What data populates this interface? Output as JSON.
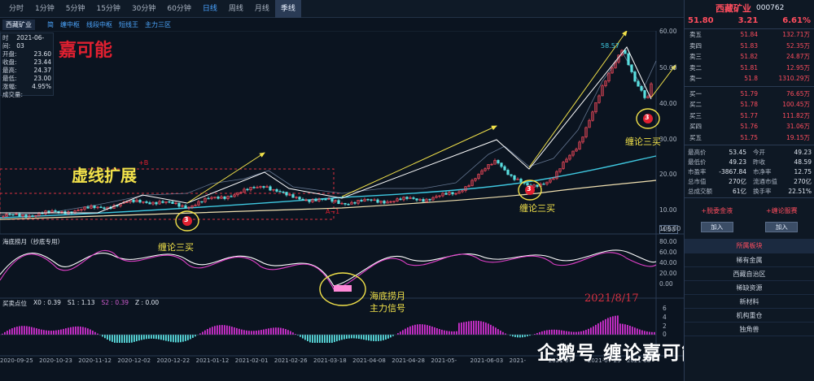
{
  "tabs": [
    {
      "label": "分时",
      "state": ""
    },
    {
      "label": "1分钟",
      "state": ""
    },
    {
      "label": "5分钟",
      "state": ""
    },
    {
      "label": "15分钟",
      "state": ""
    },
    {
      "label": "30分钟",
      "state": ""
    },
    {
      "label": "60分钟",
      "state": ""
    },
    {
      "label": "日线",
      "state": "active"
    },
    {
      "label": "周线",
      "state": ""
    },
    {
      "label": "月线",
      "state": ""
    },
    {
      "label": "季线",
      "state": "hl"
    }
  ],
  "subtabs": [
    "简",
    "缠中枢",
    "线段中枢",
    "短线王",
    "主力三区"
  ],
  "left_stock_name": "西藏矿业",
  "infobox": {
    "rows": [
      {
        "k": "时间",
        "v": "2021-06-03"
      },
      {
        "k": "开盘",
        "v": "23.60"
      },
      {
        "k": "收盘",
        "v": "23.44"
      },
      {
        "k": "最高",
        "v": "24.37"
      },
      {
        "k": "最低",
        "v": "23.00"
      },
      {
        "k": "涨幅",
        "v": "4.95%"
      },
      {
        "k": "成交量",
        "v": ""
      }
    ]
  },
  "annotations": {
    "title_red": "嘉可能",
    "dashed_ext": "虚线扩展",
    "chan1": "缠论三买",
    "chan2": "缠论三买",
    "chan3": "缠论三买",
    "haidi": "海底捞月",
    "haidi2": "主力信号",
    "date": "2021/8/17",
    "circle_num": "3",
    "peak_label": "58.57",
    "B_label": "+B",
    "A_label": "A~1",
    "watermark": "企鹅号 缠论嘉可能莫"
  },
  "main_axis": [
    "60.00",
    "50.00",
    "40.00",
    "30.00",
    "20.00",
    "10.00",
    "4.50"
  ],
  "osc_title": "海底捞月（抄底专用）",
  "osc_axis": [
    "100.00",
    "80.00",
    "60.00",
    "40.00",
    "20.00",
    "0.00"
  ],
  "macd_title": "买卖点位",
  "macd_vals": [
    {
      "k": "X0",
      "v": "0.39",
      "c": "#c8d0dc"
    },
    {
      "k": "S1",
      "v": "1.13",
      "c": "#c8d0dc"
    },
    {
      "k": "S2",
      "v": "0.39",
      "c": "#d05cd0"
    },
    {
      "k": "Z",
      "v": "0.00",
      "c": "#c8d0dc"
    }
  ],
  "macd_axis": [
    "6",
    "4",
    "2",
    "0"
  ],
  "dates": [
    "2020-09-25",
    "2020-10-23",
    "2020-11-12",
    "2020-12-02",
    "2020-12-22",
    "2021-01-12",
    "2021-02-01",
    "2021-02-26",
    "2021-03-18",
    "2021-04-08",
    "2021-04-28",
    "2021-05-",
    "2021-06-03",
    "2021-",
    "2021-07-",
    "2021-07-29",
    "2021-08"
  ],
  "rp": {
    "name": "西藏矿业",
    "code": "000762",
    "price": "51.80",
    "change": "3.21",
    "pct": "6.61%",
    "asks": [
      {
        "l": "卖五",
        "p": "51.84",
        "q": "132.71万"
      },
      {
        "l": "卖四",
        "p": "51.83",
        "q": "52.35万"
      },
      {
        "l": "卖三",
        "p": "51.82",
        "q": "24.87万"
      },
      {
        "l": "卖二",
        "p": "51.81",
        "q": "12.95万"
      },
      {
        "l": "卖一",
        "p": "51.8",
        "q": "1310.29万"
      }
    ],
    "bids": [
      {
        "l": "买一",
        "p": "51.79",
        "q": "76.65万"
      },
      {
        "l": "买二",
        "p": "51.78",
        "q": "100.45万"
      },
      {
        "l": "买三",
        "p": "51.77",
        "q": "111.82万"
      },
      {
        "l": "买四",
        "p": "51.76",
        "q": "31.06万"
      },
      {
        "l": "买五",
        "p": "51.75",
        "q": "19.15万"
      }
    ],
    "stats": [
      {
        "k": "最高价",
        "v": "53.45",
        "k2": "今开",
        "v2": "49.23"
      },
      {
        "k": "最低价",
        "v": "49.23",
        "k2": "昨收",
        "v2": "48.59"
      },
      {
        "k": "市盈率",
        "v": "-3867.84",
        "k2": "市净率",
        "v2": "12.75"
      },
      {
        "k": "总市值",
        "v": "270亿",
        "k2": "流通市值",
        "v2": "270亿"
      },
      {
        "k": "总成交额",
        "v": "61亿",
        "k2": "换手率",
        "v2": "22.51%"
      }
    ],
    "btn1": "+脱委金液",
    "btn2": "+缠论服赛",
    "add1": "加入",
    "add2": "加入",
    "section": "所属板块",
    "sectors": [
      "稀有金属",
      "西藏自治区",
      "稀缺资源",
      "新材料",
      "机构重仓",
      "独角兽"
    ]
  },
  "colors": {
    "up": "#ff4d5e",
    "down": "#5adfe0",
    "bg": "#0b1420",
    "accent": "#4aa3ff"
  }
}
